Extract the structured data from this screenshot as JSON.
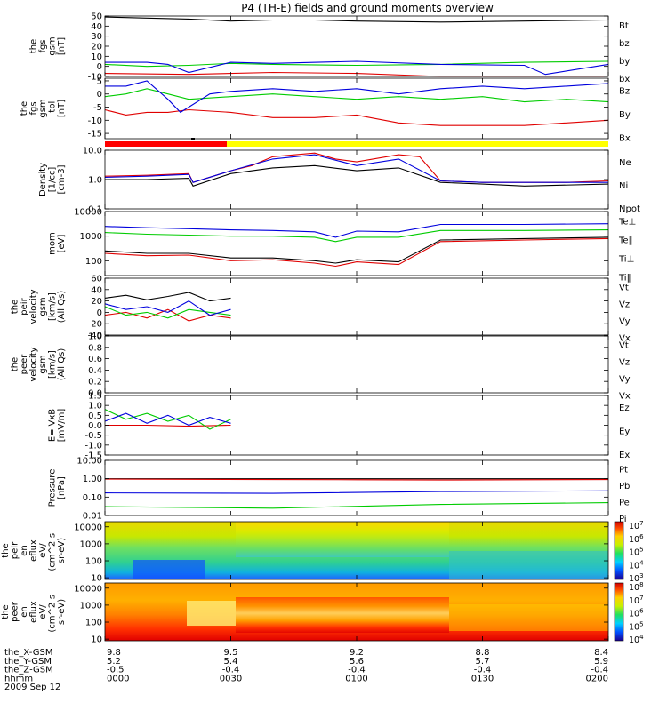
{
  "title": "P4 (TH-E) fields and ground moments overview",
  "colors": {
    "black": "#000000",
    "red": "#e00000",
    "green": "#00cc00",
    "blue": "#0000dd",
    "yellow": "#ffff00",
    "barred": "#ff0000"
  },
  "footer": {
    "row_labels": [
      "the_X-GSM",
      "the_Y-GSM",
      "the_Z-GSM",
      "hhmm",
      "2009 Sep 12"
    ],
    "columns": [
      [
        "9.8",
        "5.2",
        "-0.5",
        "0000"
      ],
      [
        "9.5",
        "5.4",
        "-0.4",
        "0030"
      ],
      [
        "9.2",
        "5.6",
        "-0.4",
        "0100"
      ],
      [
        "8.8",
        "5.7",
        "-0.4",
        "0130"
      ],
      [
        "8.4",
        "5.9",
        "-0.4",
        "0200"
      ]
    ]
  },
  "chart_data": [
    {
      "type": "line",
      "ylabel": [
        "the",
        "fgs",
        "gsm",
        "[nT]"
      ],
      "ylim": [
        -10,
        50
      ],
      "yticks": [
        "50",
        "40",
        "30",
        "20",
        "10",
        "0",
        "-10"
      ],
      "series": [
        {
          "name": "Bt",
          "color": "#000000",
          "x": [
            0,
            5,
            10,
            20,
            30,
            40,
            50,
            60,
            80,
            100,
            120
          ],
          "values": [
            49,
            48.5,
            48,
            47,
            45,
            46,
            46,
            45,
            44,
            45,
            46
          ]
        },
        {
          "name": "bz",
          "color": "#e00000",
          "x": [
            0,
            20,
            40,
            60,
            80,
            100,
            120
          ],
          "values": [
            -7,
            -8,
            -6,
            -7,
            -10,
            -11,
            -10
          ]
        },
        {
          "name": "by",
          "color": "#00cc00",
          "x": [
            0,
            10,
            20,
            30,
            40,
            60,
            80,
            100,
            120
          ],
          "values": [
            2,
            0,
            1,
            3,
            2,
            1,
            2,
            4,
            5
          ]
        },
        {
          "name": "bx",
          "color": "#0000dd",
          "x": [
            0,
            10,
            15,
            20,
            30,
            40,
            60,
            80,
            100,
            105,
            120
          ],
          "values": [
            4,
            4,
            2,
            -6,
            4,
            3,
            5,
            2,
            1,
            -8,
            2
          ]
        }
      ]
    },
    {
      "type": "line",
      "ylabel": [
        "the",
        "fgs",
        "gsm",
        "-tbl",
        "[nT]"
      ],
      "ylim": [
        -17,
        6
      ],
      "yticks": [
        "5",
        "0",
        "-5",
        "-10",
        "-15"
      ],
      "series": [
        {
          "name": "Bz",
          "color": "#e00000",
          "x": [
            0,
            5,
            10,
            15,
            20,
            30,
            40,
            50,
            60,
            70,
            80,
            90,
            100,
            110,
            120
          ],
          "values": [
            -6,
            -8,
            -7,
            -7,
            -6,
            -7,
            -9,
            -9,
            -8,
            -11,
            -12,
            -12,
            -12,
            -11,
            -10
          ]
        },
        {
          "name": "By",
          "color": "#00cc00",
          "x": [
            0,
            5,
            10,
            15,
            20,
            30,
            40,
            50,
            60,
            70,
            80,
            90,
            100,
            110,
            120
          ],
          "values": [
            -1,
            0,
            2,
            0,
            -2,
            -1,
            0,
            -1,
            -2,
            -1,
            -2,
            -1,
            -3,
            -2,
            -3
          ]
        },
        {
          "name": "Bx",
          "color": "#0000dd",
          "x": [
            0,
            5,
            10,
            15,
            18,
            25,
            30,
            40,
            50,
            60,
            70,
            80,
            90,
            100,
            110,
            120
          ],
          "values": [
            3,
            3,
            5,
            -2,
            -7,
            0,
            1,
            2,
            1,
            2,
            0,
            2,
            3,
            2,
            3,
            4
          ]
        }
      ]
    },
    {
      "type": "line",
      "log": true,
      "ylabel": [
        "Density",
        "[1/cc]",
        "[cm-3]"
      ],
      "ylim": [
        0.1,
        10
      ],
      "yticks": [
        "10.0",
        "1.0",
        "0.1"
      ],
      "series": [
        {
          "name": "Ne",
          "color": "#e00000",
          "x": [
            0,
            10,
            20,
            21,
            30,
            35,
            40,
            50,
            55,
            60,
            70,
            75,
            80,
            90,
            100,
            110,
            120
          ],
          "values": [
            1.3,
            1.4,
            1.6,
            0.8,
            2,
            3,
            6,
            8,
            5,
            4,
            7,
            6,
            0.9,
            0.8,
            0.8,
            0.8,
            0.9
          ]
        },
        {
          "name": "Ni",
          "color": "#000000",
          "x": [
            0,
            10,
            20,
            21,
            30,
            40,
            50,
            60,
            70,
            80,
            90,
            100,
            120
          ],
          "values": [
            1.0,
            1.0,
            1.1,
            0.6,
            1.6,
            2.5,
            3,
            2,
            2.5,
            0.8,
            0.7,
            0.6,
            0.7
          ]
        },
        {
          "name": "Npot",
          "color": "#0000dd",
          "x": [
            0,
            10,
            20,
            21,
            30,
            40,
            50,
            60,
            70,
            80,
            90,
            100,
            120
          ],
          "values": [
            1.2,
            1.3,
            1.5,
            0.8,
            2,
            5,
            7,
            3,
            5,
            0.9,
            0.8,
            0.8,
            0.8
          ]
        }
      ]
    },
    {
      "type": "line",
      "log": true,
      "ylabel": [
        "mom",
        "[eV]"
      ],
      "ylim": [
        25,
        10000
      ],
      "yticks": [
        "10000",
        "1000",
        "100"
      ],
      "series": [
        {
          "name": "Te⊥",
          "color": "#e00000",
          "x": [
            0,
            10,
            20,
            30,
            40,
            50,
            55,
            60,
            70,
            80,
            100,
            120
          ],
          "values": [
            200,
            160,
            170,
            100,
            110,
            80,
            60,
            90,
            70,
            600,
            700,
            800
          ]
        },
        {
          "name": "Te‖",
          "color": "#000000",
          "x": [
            0,
            10,
            20,
            30,
            40,
            50,
            55,
            60,
            70,
            80,
            100,
            120
          ],
          "values": [
            250,
            200,
            200,
            130,
            130,
            100,
            80,
            110,
            90,
            700,
            800,
            900
          ]
        },
        {
          "name": "Ti⊥",
          "color": "#0000dd",
          "x": [
            0,
            10,
            20,
            30,
            40,
            50,
            55,
            60,
            70,
            80,
            100,
            120
          ],
          "values": [
            2500,
            2200,
            2000,
            1800,
            1700,
            1500,
            900,
            1600,
            1500,
            3000,
            3000,
            3200
          ]
        },
        {
          "name": "Ti‖",
          "color": "#00cc00",
          "x": [
            0,
            10,
            20,
            30,
            40,
            50,
            55,
            60,
            70,
            80,
            100,
            120
          ],
          "values": [
            1400,
            1200,
            1100,
            1000,
            1000,
            900,
            600,
            900,
            900,
            1700,
            1700,
            1800
          ]
        }
      ]
    },
    {
      "type": "line",
      "ylabel": [
        "the",
        "peir",
        "velocity",
        "gsm",
        "[km/s]",
        "(All Qs)"
      ],
      "ylim": [
        -40,
        60
      ],
      "yticks": [
        "60",
        "40",
        "20",
        "0",
        "-20",
        "-40"
      ],
      "series": [
        {
          "name": "Vt",
          "color": "#000000",
          "x": [
            0,
            5,
            10,
            15,
            20,
            25,
            30
          ],
          "values": [
            25,
            30,
            22,
            28,
            35,
            20,
            25
          ]
        },
        {
          "name": "Vz",
          "color": "#e00000",
          "x": [
            0,
            5,
            10,
            15,
            20,
            25,
            30
          ],
          "values": [
            -5,
            0,
            -10,
            5,
            -15,
            -5,
            -10
          ]
        },
        {
          "name": "Vy",
          "color": "#00cc00",
          "x": [
            0,
            5,
            10,
            15,
            20,
            25,
            30
          ],
          "values": [
            10,
            -5,
            0,
            -10,
            5,
            0,
            -5
          ]
        },
        {
          "name": "Vx",
          "color": "#0000dd",
          "x": [
            0,
            5,
            10,
            15,
            20,
            25,
            30
          ],
          "values": [
            15,
            5,
            10,
            0,
            20,
            -5,
            5
          ]
        }
      ]
    },
    {
      "type": "line",
      "ylabel": [
        "the",
        "peer",
        "velocity",
        "gsm",
        "[km/s]",
        "(All Qs)"
      ],
      "ylim": [
        0,
        1
      ],
      "yticks": [
        "1.0",
        "0.8",
        "0.6",
        "0.4",
        "0.2",
        "0.0"
      ],
      "series": [
        {
          "name": "Vt",
          "color": "#000000",
          "x": [],
          "values": []
        },
        {
          "name": "Vz",
          "color": "#e00000",
          "x": [],
          "values": []
        },
        {
          "name": "Vy",
          "color": "#00cc00",
          "x": [],
          "values": []
        },
        {
          "name": "Vx",
          "color": "#0000dd",
          "x": [],
          "values": []
        }
      ]
    },
    {
      "type": "line",
      "ylabel": [
        "E=-VxB",
        "[mV/m]"
      ],
      "ylim": [
        -1.5,
        1.5
      ],
      "yticks": [
        "1.5",
        "1.0",
        "0.5",
        "0.0",
        "-0.5",
        "-1.0",
        "-1.5"
      ],
      "series": [
        {
          "name": "Ez",
          "color": "#e00000",
          "x": [
            0,
            10,
            20,
            30
          ],
          "values": [
            0,
            0,
            -0.05,
            0
          ]
        },
        {
          "name": "Ey",
          "color": "#00cc00",
          "x": [
            0,
            5,
            10,
            15,
            20,
            25,
            30
          ],
          "values": [
            0.8,
            0.3,
            0.6,
            0.2,
            0.5,
            -0.2,
            0.3
          ]
        },
        {
          "name": "Ex",
          "color": "#0000dd",
          "x": [
            0,
            5,
            10,
            15,
            20,
            25,
            30
          ],
          "values": [
            0.2,
            0.6,
            0.1,
            0.5,
            0.0,
            0.4,
            0.1
          ]
        }
      ]
    },
    {
      "type": "line",
      "log": true,
      "ylabel": [
        "Pressure",
        "[nPa]"
      ],
      "ylim": [
        0.01,
        10
      ],
      "yticks": [
        "10.00",
        "1.00",
        "0.10",
        "0.01"
      ],
      "series": [
        {
          "name": "Pt",
          "color": "#000000",
          "x": [
            0,
            120
          ],
          "values": [
            1.0,
            1.0
          ]
        },
        {
          "name": "Pb",
          "color": "#e00000",
          "x": [
            0,
            20,
            40,
            60,
            80,
            100,
            120
          ],
          "values": [
            0.95,
            0.93,
            0.9,
            0.88,
            0.85,
            0.88,
            0.9
          ]
        },
        {
          "name": "Pe",
          "color": "#00cc00",
          "x": [
            0,
            40,
            80,
            120
          ],
          "values": [
            0.03,
            0.025,
            0.04,
            0.05
          ]
        },
        {
          "name": "Pi",
          "color": "#0000dd",
          "x": [
            0,
            40,
            80,
            120
          ],
          "values": [
            0.17,
            0.16,
            0.2,
            0.22
          ]
        }
      ]
    },
    {
      "type": "heatmap",
      "ylabel": [
        "the",
        "peir",
        "en",
        "eflux",
        "eV/",
        "(cm^2-s-",
        "sr-eV)"
      ],
      "ylim": [
        8,
        20000
      ],
      "yticks": [
        "10000",
        "1000",
        "100",
        "10"
      ],
      "colorbar": [
        "10^7",
        "10^6",
        "10^5",
        "10^4",
        "10^3"
      ]
    },
    {
      "type": "heatmap",
      "ylabel": [
        "the",
        "peer",
        "en",
        "eflux",
        "eV/",
        "(cm^2-s-",
        "sr-eV)"
      ],
      "ylim": [
        8,
        20000
      ],
      "yticks": [
        "10000",
        "1000",
        "100",
        "10"
      ],
      "colorbar": [
        "10^8",
        "10^7",
        "10^6",
        "10^5",
        "10^4"
      ]
    }
  ]
}
